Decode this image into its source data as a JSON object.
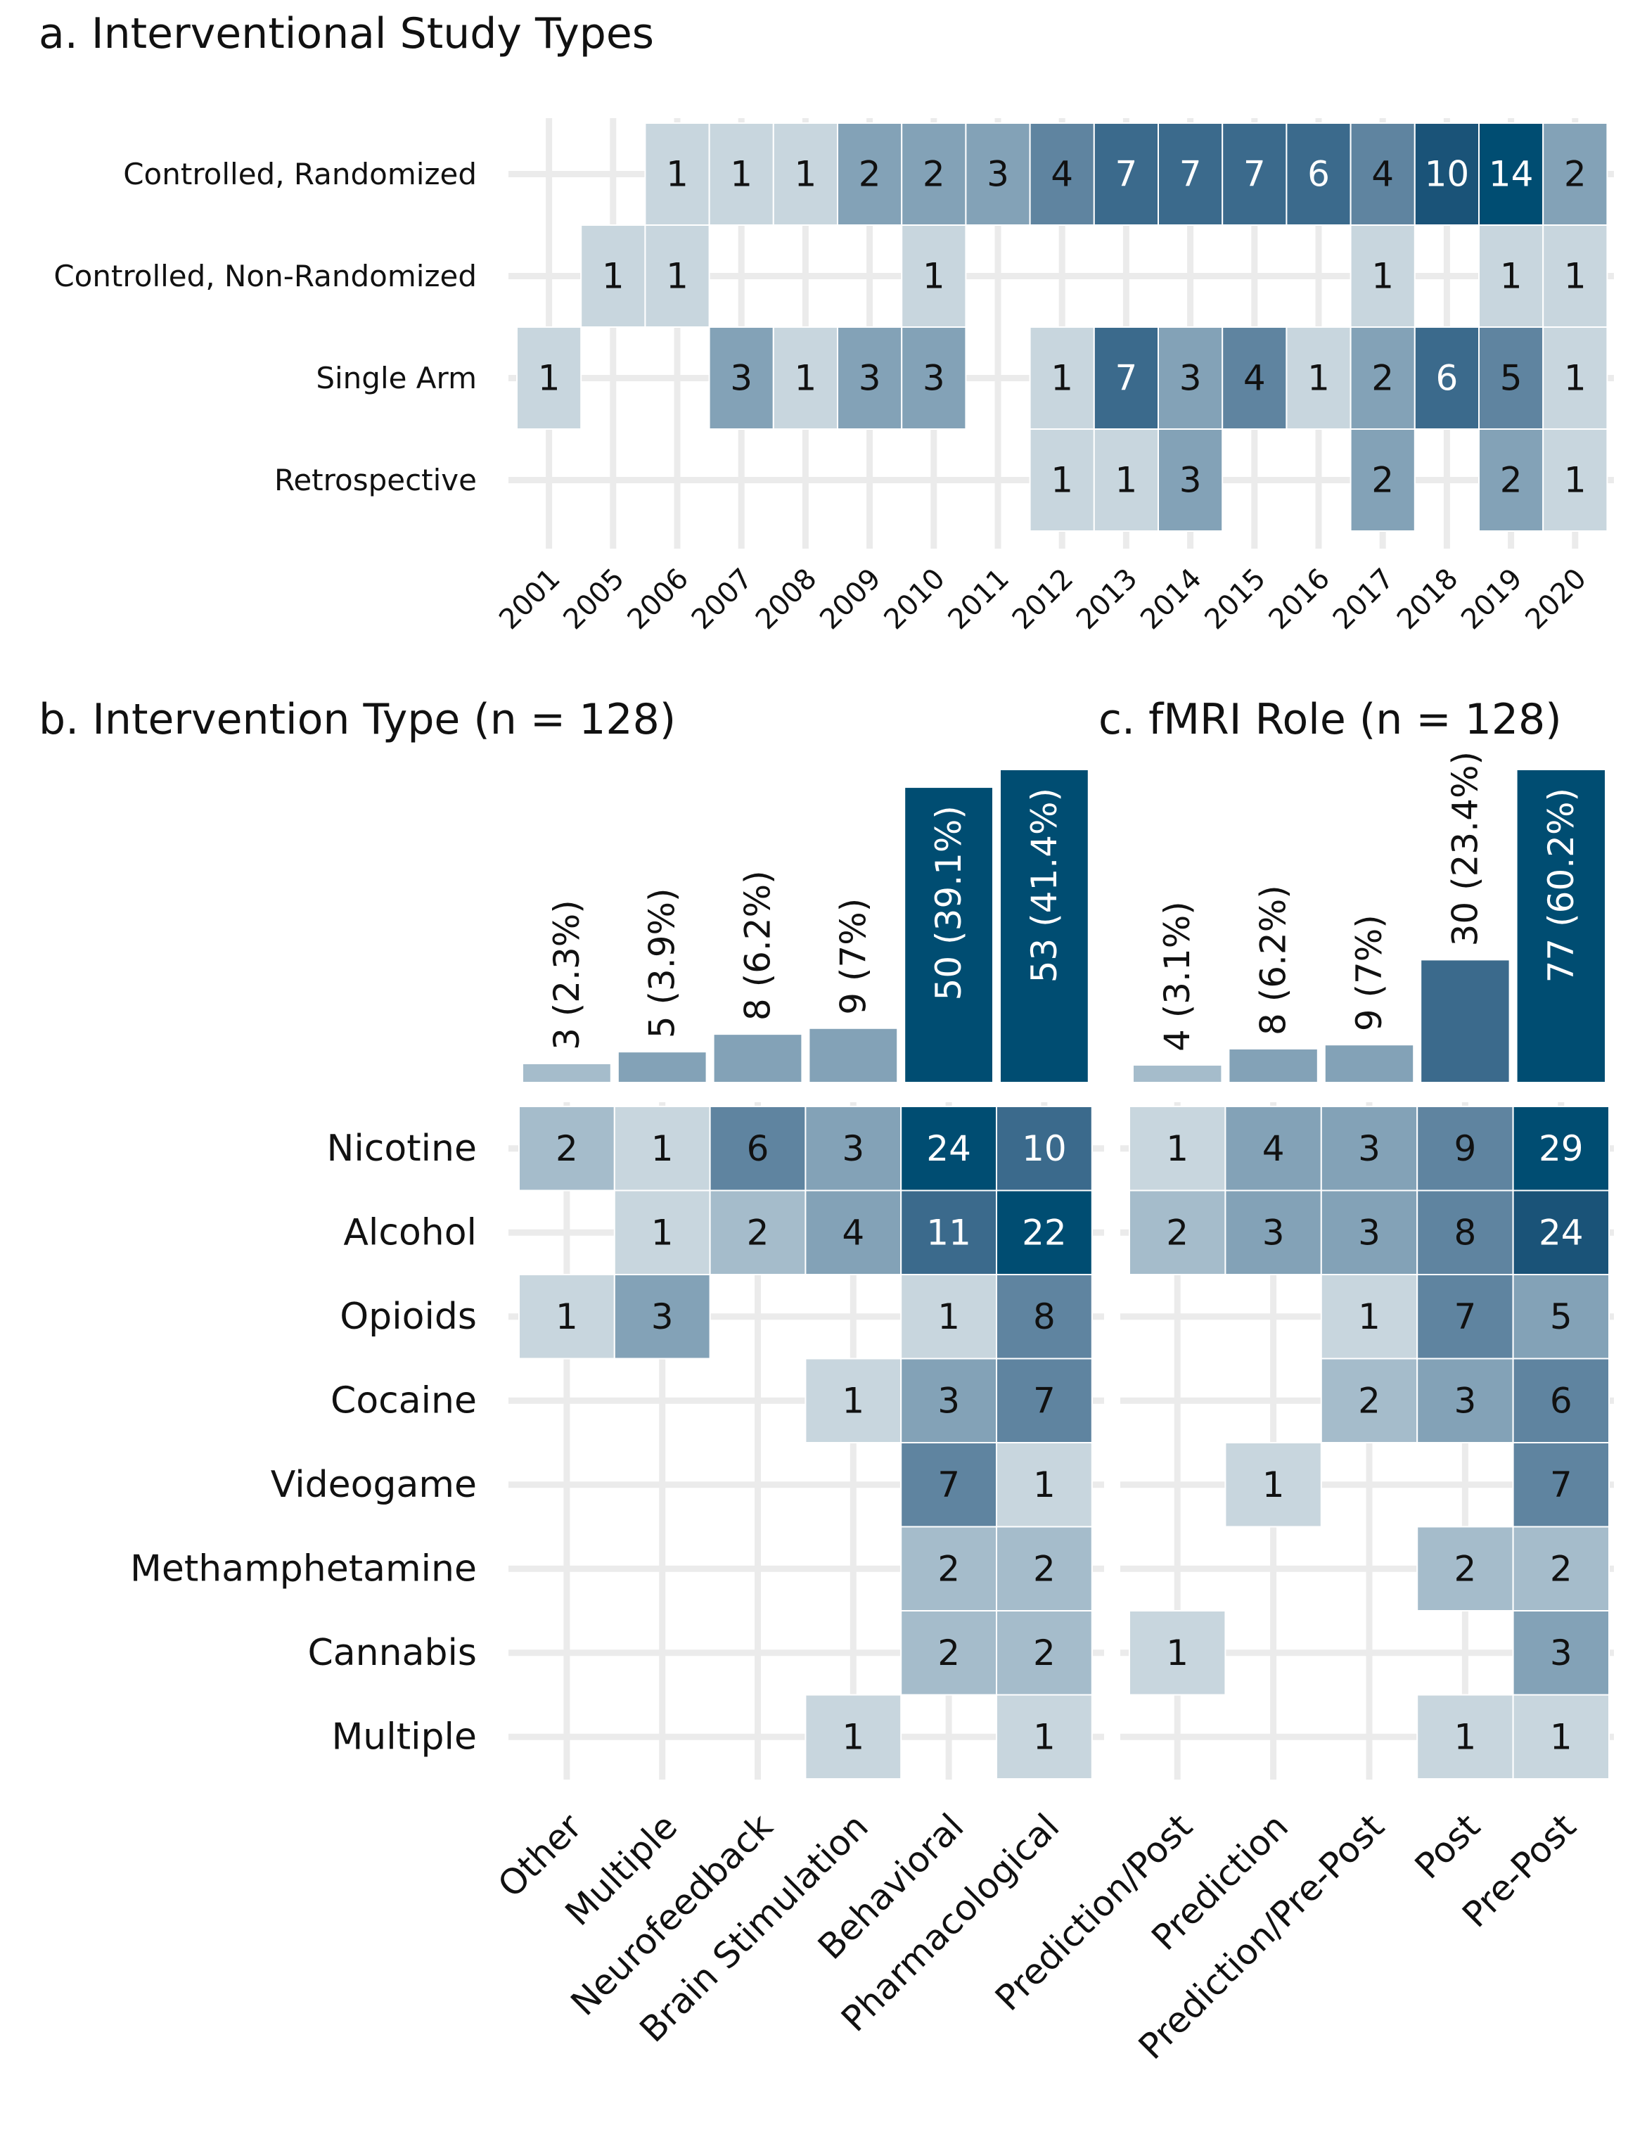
{
  "colors": {
    "grid": "#ebebeb",
    "scale": [
      "#c8d6de",
      "#a5bccb",
      "#83a2b7",
      "#5f84a0",
      "#3b6a8c",
      "#1a5378",
      "#004d72"
    ],
    "text_dark": "#111111",
    "text_light": "#ffffff"
  },
  "chart_data": [
    {
      "id": "a",
      "type": "heatmap",
      "title": "a. Interventional Study Types",
      "x": [
        "2001",
        "2005",
        "2006",
        "2007",
        "2008",
        "2009",
        "2010",
        "2011",
        "2012",
        "2013",
        "2014",
        "2015",
        "2016",
        "2017",
        "2018",
        "2019",
        "2020"
      ],
      "y": [
        "Controlled, Randomized",
        "Controlled, Non-Randomized",
        "Single Arm",
        "Retrospective"
      ],
      "values": [
        [
          null,
          null,
          1,
          1,
          1,
          2,
          2,
          3,
          4,
          7,
          7,
          7,
          6,
          4,
          10,
          14,
          2
        ],
        [
          null,
          1,
          1,
          null,
          null,
          null,
          1,
          null,
          null,
          null,
          null,
          null,
          null,
          1,
          null,
          1,
          1
        ],
        [
          1,
          null,
          null,
          3,
          1,
          3,
          3,
          null,
          1,
          7,
          3,
          4,
          1,
          2,
          6,
          5,
          1
        ],
        [
          null,
          null,
          null,
          null,
          null,
          null,
          null,
          null,
          1,
          1,
          3,
          null,
          null,
          2,
          null,
          2,
          1
        ]
      ]
    },
    {
      "id": "b",
      "type": "heatmap",
      "title": "b. Intervention Type (n = 128)",
      "x": [
        "Other",
        "Multiple",
        "Neurofeedback",
        "Brain Stimulation",
        "Behavioral",
        "Pharmacological"
      ],
      "y": [
        "Nicotine",
        "Alcohol",
        "Opioids",
        "Cocaine",
        "Videogame",
        "Methamphetamine",
        "Cannabis",
        "Multiple"
      ],
      "values": [
        [
          2,
          1,
          6,
          3,
          24,
          10
        ],
        [
          null,
          1,
          2,
          4,
          11,
          22
        ],
        [
          1,
          3,
          null,
          null,
          1,
          8
        ],
        [
          null,
          null,
          null,
          1,
          3,
          7
        ],
        [
          null,
          null,
          null,
          null,
          7,
          1
        ],
        [
          null,
          null,
          null,
          null,
          2,
          2
        ],
        [
          null,
          null,
          null,
          null,
          2,
          2
        ],
        [
          null,
          null,
          null,
          1,
          null,
          1
        ]
      ],
      "totals": {
        "type": "bar",
        "values": [
          3,
          5,
          8,
          9,
          50,
          53
        ],
        "labels": [
          "3 (2.3%)",
          "5 (3.9%)",
          "8 (6.2%)",
          "9 (7%)",
          "50 (39.1%)",
          "53 (41.4%)"
        ]
      }
    },
    {
      "id": "c",
      "type": "heatmap",
      "title": "c. fMRI Role (n = 128)",
      "x": [
        "Prediction/Post",
        "Prediction",
        "Prediction/Pre-Post",
        "Post",
        "Pre-Post"
      ],
      "y": [
        "Nicotine",
        "Alcohol",
        "Opioids",
        "Cocaine",
        "Videogame",
        "Methamphetamine",
        "Cannabis",
        "Multiple"
      ],
      "values": [
        [
          1,
          4,
          3,
          9,
          29
        ],
        [
          2,
          3,
          3,
          8,
          24
        ],
        [
          null,
          null,
          1,
          7,
          5
        ],
        [
          null,
          null,
          2,
          3,
          6
        ],
        [
          null,
          1,
          null,
          null,
          7
        ],
        [
          null,
          null,
          null,
          2,
          2
        ],
        [
          1,
          null,
          null,
          null,
          3
        ],
        [
          null,
          null,
          null,
          1,
          1
        ]
      ],
      "totals": {
        "type": "bar",
        "values": [
          4,
          8,
          9,
          30,
          77
        ],
        "labels": [
          "4 (3.1%)",
          "8 (6.2%)",
          "9 (7%)",
          "30 (23.4%)",
          "77 (60.2%)"
        ]
      }
    }
  ]
}
